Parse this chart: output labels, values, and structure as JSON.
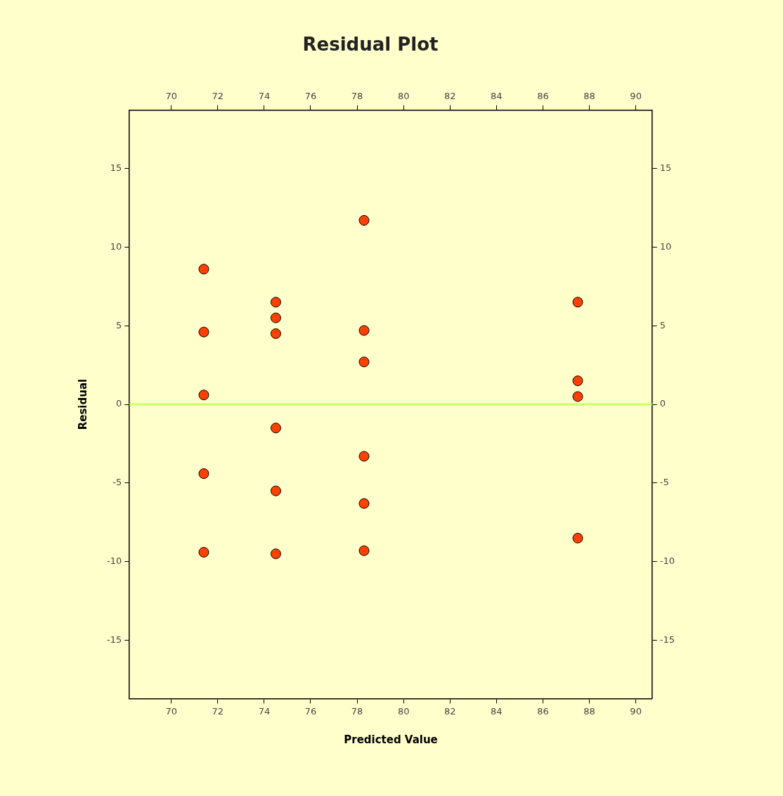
{
  "chart_data": {
    "type": "scatter",
    "title": "Residual Plot",
    "xlabel": "Predicted Value",
    "ylabel": "Residual",
    "series": [
      {
        "color": "#ff4000",
        "x": [
          71.4,
          71.4,
          71.4,
          71.4,
          71.4,
          74.5,
          74.5,
          74.5,
          74.5,
          74.5,
          74.5,
          78.3,
          78.3,
          78.3,
          78.3,
          78.3,
          78.3,
          87.5,
          87.5,
          87.5,
          87.5
        ],
        "values": [
          8.6,
          4.6,
          0.6,
          -4.4,
          -9.4,
          6.5,
          5.5,
          4.5,
          -1.5,
          -5.5,
          -9.5,
          11.7,
          4.7,
          2.7,
          -3.3,
          -6.3,
          -9.3,
          6.5,
          1.5,
          0.5,
          -8.5
        ]
      }
    ],
    "xlim": [
      68.2,
      90.7
    ],
    "xticks": [
      70,
      72,
      74,
      76,
      78,
      80,
      82,
      84,
      86,
      88,
      90
    ],
    "x2lim": [
      68.2,
      90.7
    ],
    "x2ticks": [
      70,
      72,
      74,
      76,
      78,
      80,
      82,
      84,
      86,
      88,
      90
    ],
    "ylim": [
      -18.7,
      18.7
    ],
    "yticks": [
      -15,
      -10,
      -5,
      0,
      5,
      10,
      15
    ],
    "y2lim": [
      -18.7,
      18.7
    ],
    "y2ticks": [
      -15,
      -10,
      -5,
      0,
      5,
      10,
      15
    ],
    "ref_lines": [
      {
        "axis": "y",
        "value": 0,
        "color": "#ccff66"
      }
    ],
    "marker": "circle",
    "grid": false,
    "legend": false
  }
}
